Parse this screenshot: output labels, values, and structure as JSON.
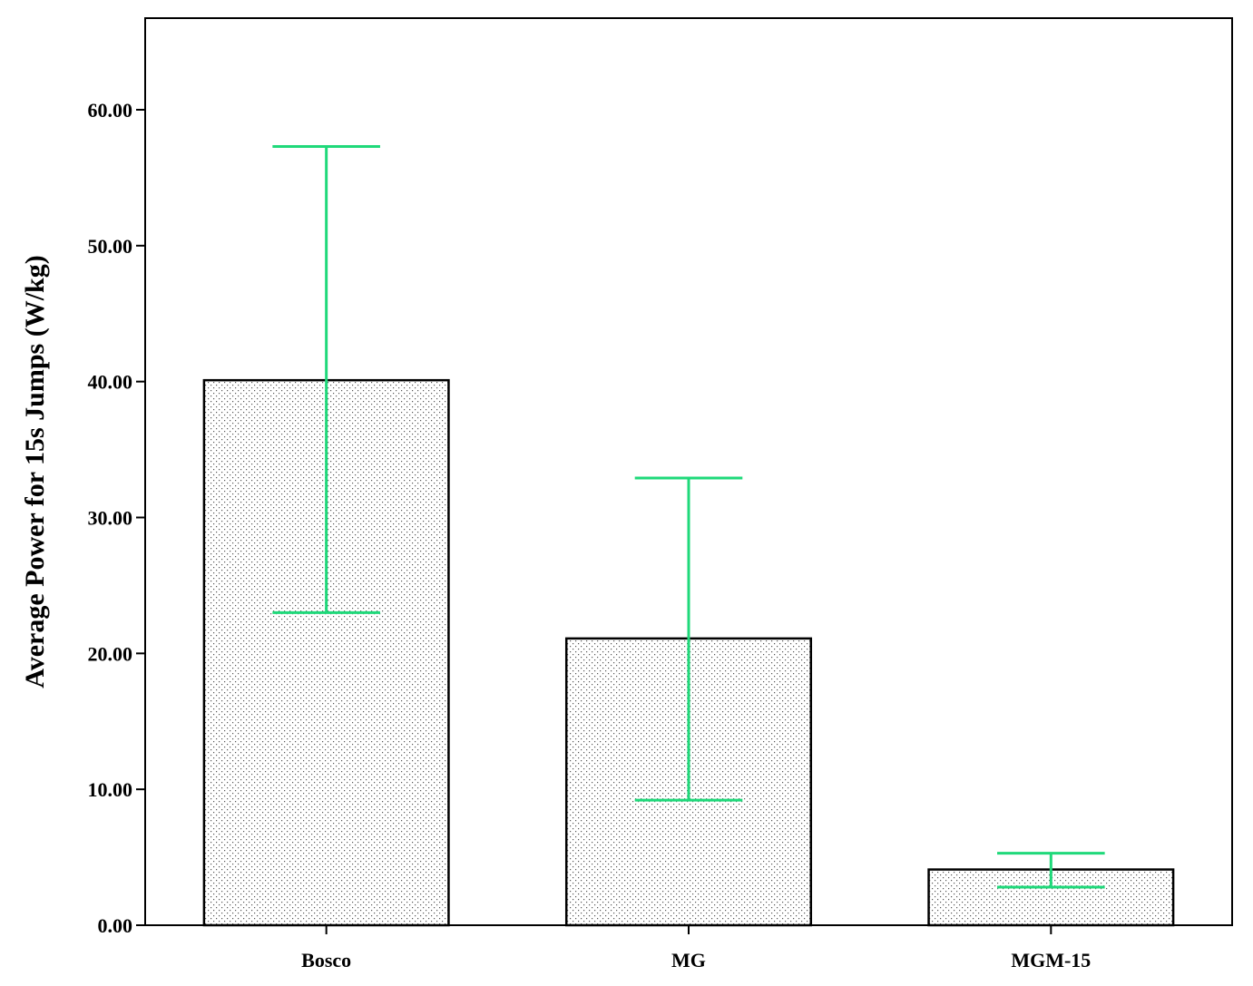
{
  "chart_data": {
    "type": "bar",
    "title": "",
    "xlabel": "",
    "ylabel": "Average Power for 15s Jumps (W/kg)",
    "categories": [
      "Bosco",
      "MG",
      "MGM-15"
    ],
    "values": [
      40.1,
      21.1,
      4.1
    ],
    "error_bars": [
      {
        "low": 23.0,
        "high": 57.3
      },
      {
        "low": 9.2,
        "high": 32.9
      },
      {
        "low": 2.8,
        "high": 5.3
      }
    ],
    "ylim": [
      0,
      60
    ],
    "yticks": [
      "0.00",
      "10.00",
      "20.00",
      "30.00",
      "40.00",
      "50.00",
      "60.00"
    ],
    "grid": false,
    "legend": "none",
    "colors": {
      "bar_fill": "#ffffff",
      "bar_pattern": "#555555",
      "bar_stroke": "#000000",
      "error_bar": "#1fd97a",
      "axis": "#000000"
    }
  }
}
